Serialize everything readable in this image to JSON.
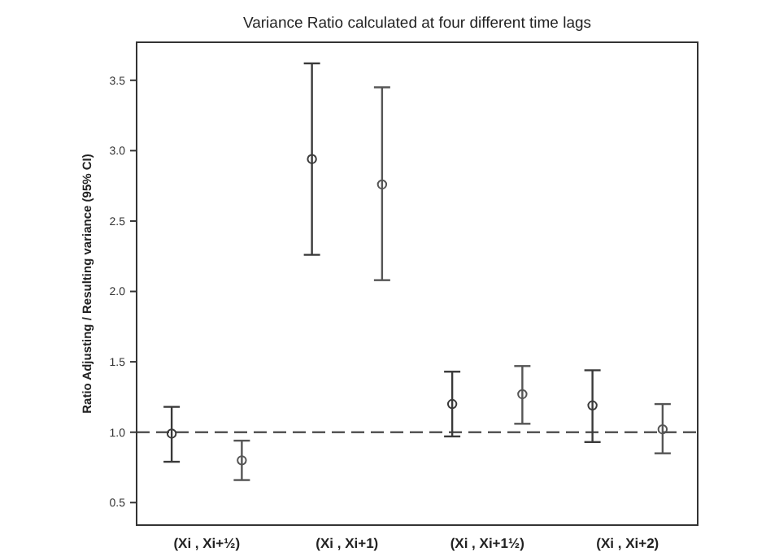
{
  "chart_data": {
    "type": "scatter",
    "title": "Variance Ratio calculated at four different time lags",
    "ylabel": "Ratio Adjusting / Resulting variance (95% CI)",
    "categories": [
      "(Xi , Xi+½)",
      "(Xi , Xi+1)",
      "(Xi , Xi+1½)",
      "(Xi , Xi+2)"
    ],
    "series": [
      {
        "color": "#3a3a3a",
        "values": [
          0.99,
          2.94,
          1.2,
          1.19
        ],
        "errors": [
          [
            0.79,
            1.18
          ],
          [
            2.26,
            3.62
          ],
          [
            0.97,
            1.43
          ],
          [
            0.93,
            1.44
          ]
        ]
      },
      {
        "color": "#555555",
        "values": [
          0.8,
          2.76,
          1.27,
          1.02
        ],
        "errors": [
          [
            0.66,
            0.94
          ],
          [
            2.08,
            3.45
          ],
          [
            1.06,
            1.47
          ],
          [
            0.85,
            1.2
          ]
        ]
      }
    ],
    "ylim": [
      0.34,
      3.77
    ],
    "yticks": [
      {
        "value": 0.5,
        "label": "0.5"
      },
      {
        "value": 1,
        "label": "1.0"
      },
      {
        "value": 1.5,
        "label": "1.5"
      },
      {
        "value": 2,
        "label": "2.0"
      },
      {
        "value": 2.5,
        "label": "2.5"
      },
      {
        "value": 3,
        "label": "3.0"
      },
      {
        "value": 3.5,
        "label": "3.5"
      }
    ],
    "ref_lines": [
      {
        "axis": "y",
        "value": 1,
        "color": "#555555",
        "line_style": "dashed"
      }
    ],
    "marker": "circle",
    "grid": false
  }
}
